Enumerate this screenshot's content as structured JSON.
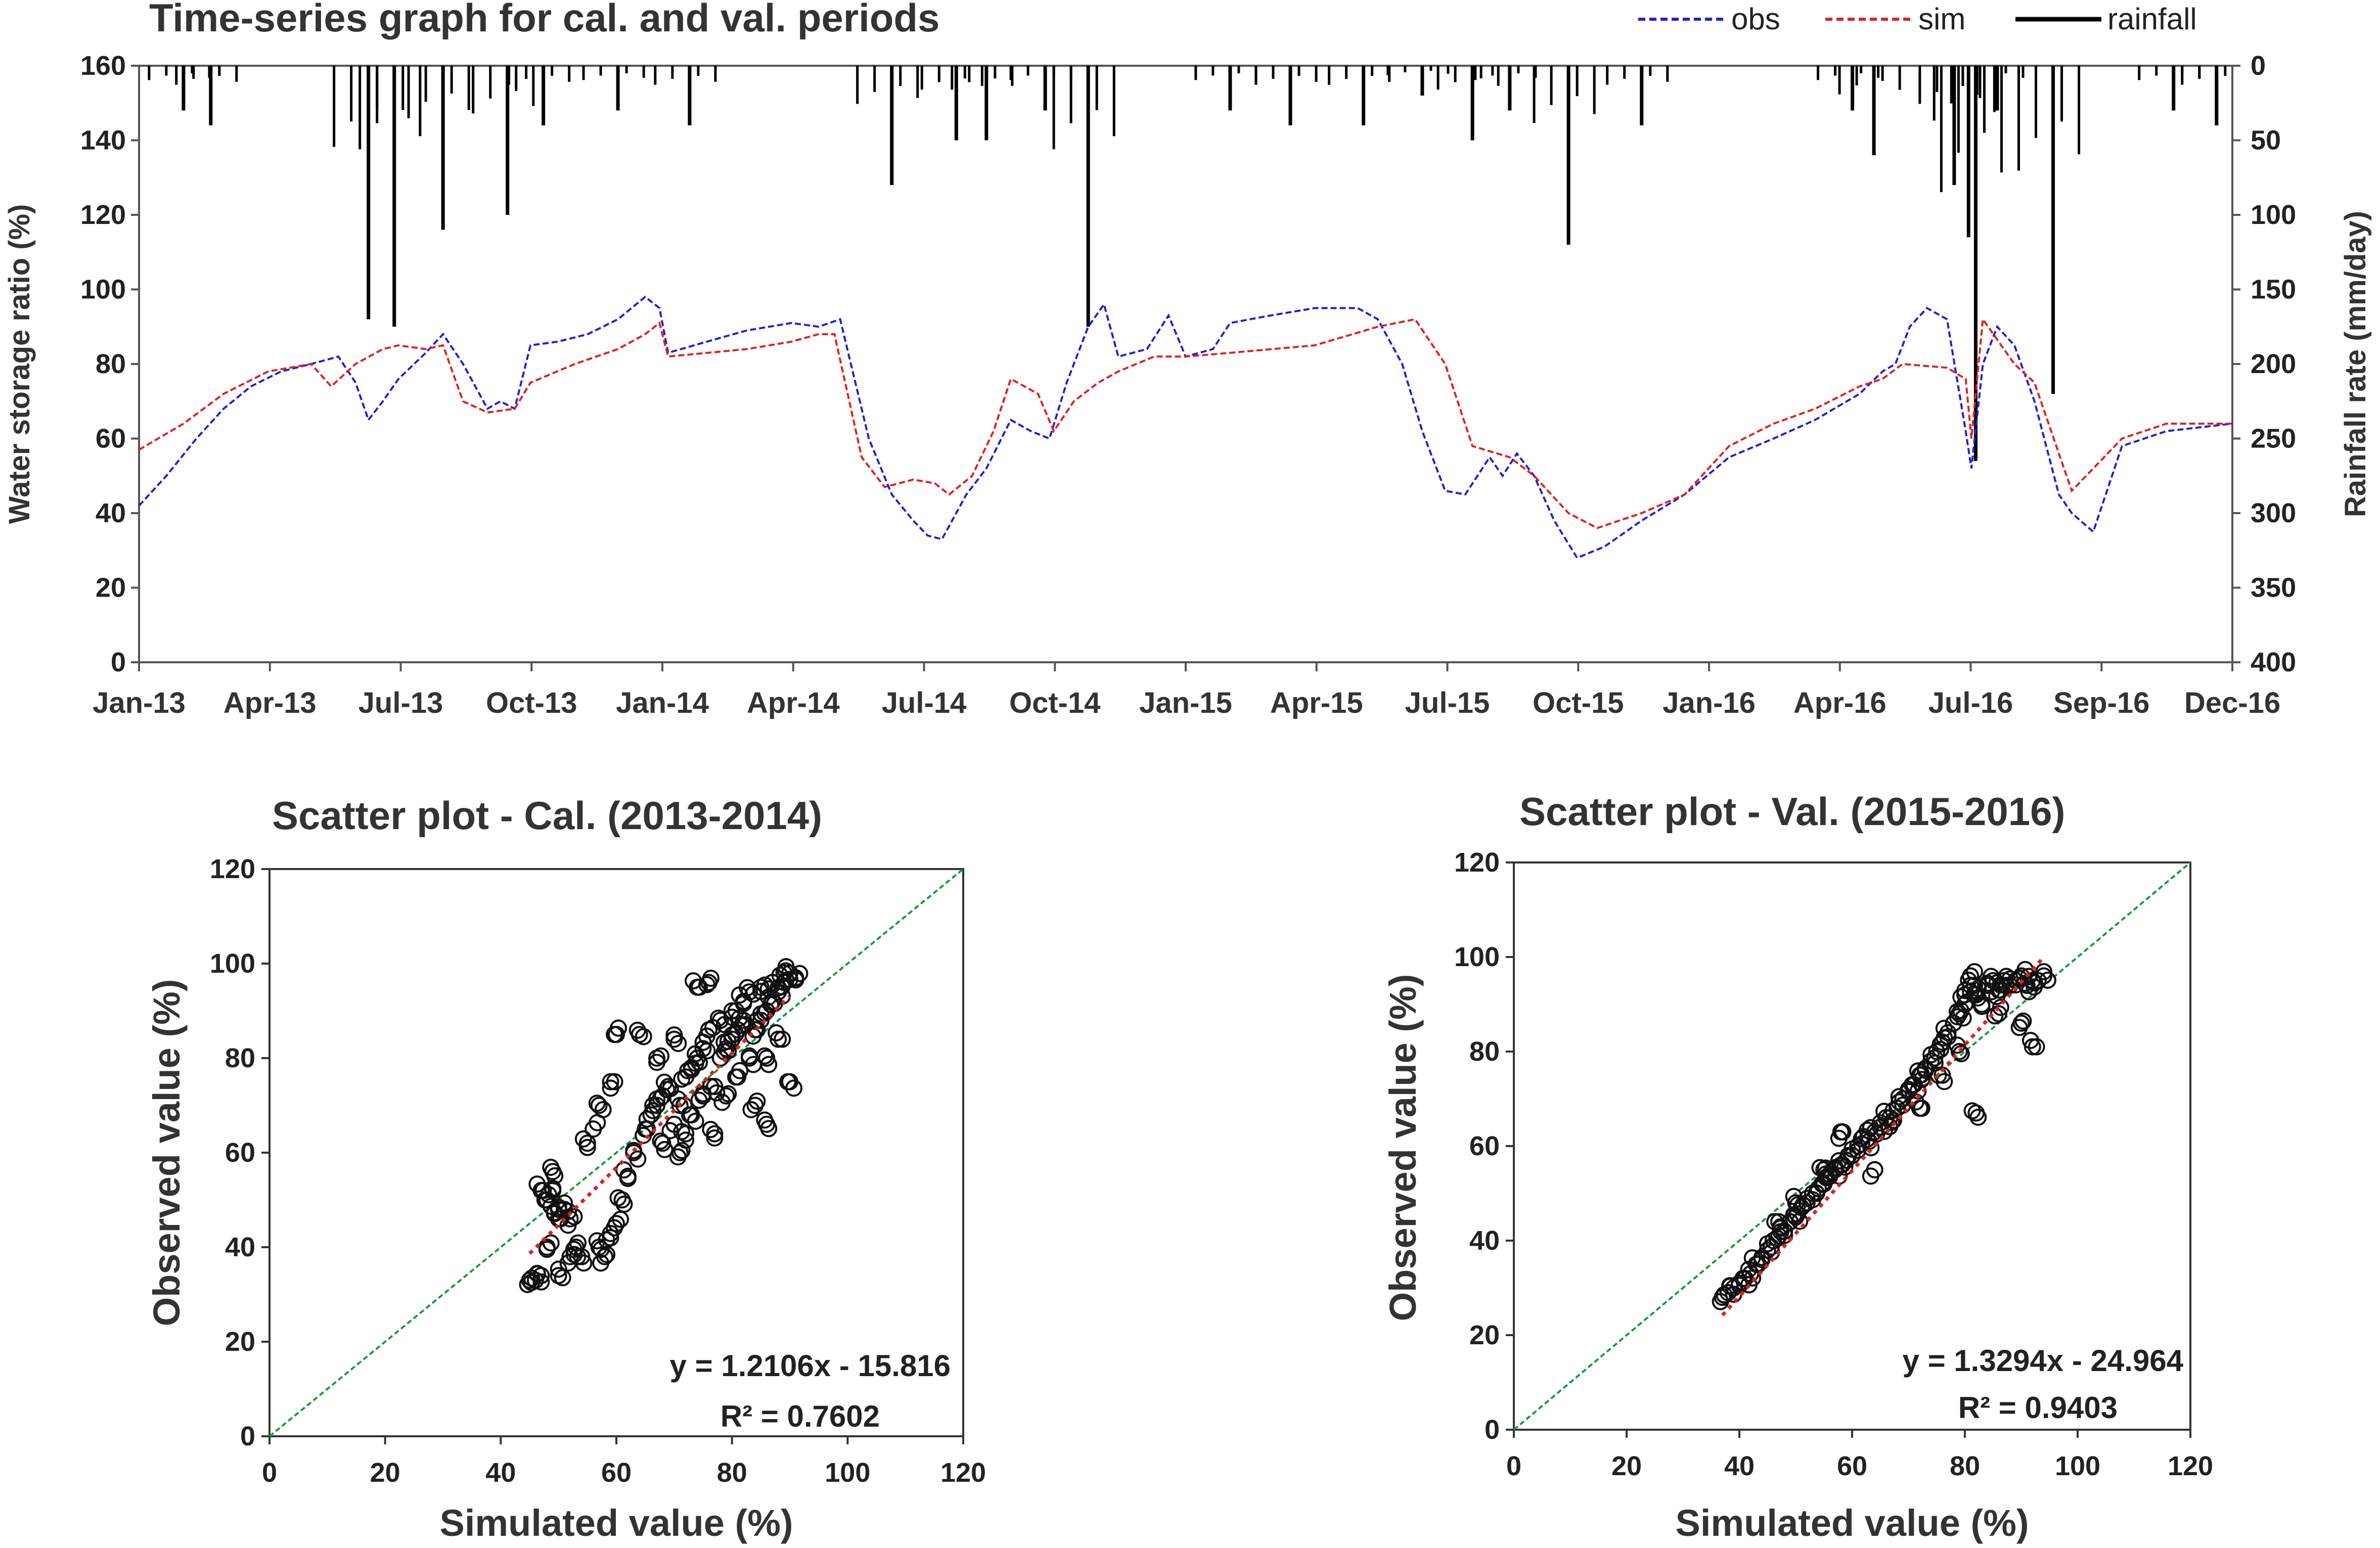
{
  "chart_data": [
    {
      "type": "line",
      "title": "Time-series graph for cal. and val. periods",
      "ylabel": "Water storage ratio (%)",
      "y2label": "Rainfall rate (mm/day)",
      "ylim": [
        0,
        160
      ],
      "y2lim": [
        0,
        400
      ],
      "y2_inverted": true,
      "yticks": [
        "0",
        "20",
        "40",
        "60",
        "80",
        "100",
        "120",
        "140",
        "160"
      ],
      "y2ticks": [
        "0",
        "50",
        "100",
        "150",
        "200",
        "250",
        "300",
        "350",
        "400"
      ],
      "xticks": [
        "Jan-13",
        "Apr-13",
        "Jul-13",
        "Oct-13",
        "Jan-14",
        "Apr-14",
        "Jul-14",
        "Oct-14",
        "Jan-15",
        "Apr-15",
        "Jul-15",
        "Oct-15",
        "Jan-16",
        "Apr-16",
        "Jul-16",
        "Sep-16",
        "Dec-16"
      ],
      "legend_position": "top-right",
      "series": [
        {
          "name": "obs",
          "color": "#1f1fd6",
          "style": "dashed",
          "x": [
            "2013-01-01",
            "2013-01-20",
            "2013-02-10",
            "2013-03-01",
            "2013-03-20",
            "2013-04-10",
            "2013-05-01",
            "2013-05-20",
            "2013-06-01",
            "2013-06-10",
            "2013-06-20",
            "2013-07-01",
            "2013-07-20",
            "2013-08-01",
            "2013-08-15",
            "2013-09-01",
            "2013-09-10",
            "2013-09-20",
            "2013-10-01",
            "2013-10-20",
            "2013-11-10",
            "2013-12-01",
            "2013-12-20",
            "2013-12-30",
            "2014-01-05",
            "2014-02-01",
            "2014-03-01",
            "2014-04-01",
            "2014-04-20",
            "2014-05-05",
            "2014-05-25",
            "2014-06-10",
            "2014-06-25",
            "2014-07-05",
            "2014-07-15",
            "2014-08-01",
            "2014-08-15",
            "2014-09-01",
            "2014-09-15",
            "2014-09-28",
            "2014-10-10",
            "2014-10-25",
            "2014-11-05",
            "2014-11-15",
            "2014-12-05",
            "2014-12-20",
            "2015-01-01",
            "2015-01-20",
            "2015-02-01",
            "2015-03-01",
            "2015-04-01",
            "2015-05-01",
            "2015-05-15",
            "2015-06-01",
            "2015-06-15",
            "2015-07-01",
            "2015-07-15",
            "2015-08-01",
            "2015-08-10",
            "2015-08-20",
            "2015-09-01",
            "2015-09-15",
            "2015-10-01",
            "2015-10-20",
            "2015-11-15",
            "2015-12-15",
            "2016-01-15",
            "2016-02-15",
            "2016-03-15",
            "2016-04-15",
            "2016-05-01",
            "2016-05-10",
            "2016-05-20",
            "2016-06-01",
            "2016-06-15",
            "2016-06-28",
            "2016-07-02",
            "2016-07-10",
            "2016-07-20",
            "2016-08-01",
            "2016-08-15",
            "2016-09-01",
            "2016-09-10",
            "2016-09-25",
            "2016-10-15",
            "2016-11-15",
            "2016-12-31"
          ],
          "y": [
            42,
            50,
            60,
            68,
            74,
            78,
            80,
            82,
            75,
            65,
            70,
            76,
            83,
            88,
            80,
            68,
            70,
            68,
            85,
            86,
            88,
            92,
            98,
            95,
            83,
            86,
            89,
            91,
            90,
            92,
            60,
            45,
            38,
            34,
            33,
            45,
            52,
            65,
            62,
            60,
            75,
            90,
            96,
            82,
            84,
            93,
            82,
            84,
            91,
            93,
            95,
            95,
            92,
            80,
            62,
            46,
            45,
            55,
            50,
            56,
            50,
            38,
            28,
            31,
            38,
            45,
            55,
            60,
            65,
            72,
            78,
            80,
            90,
            95,
            92,
            62,
            52,
            80,
            90,
            85,
            70,
            45,
            40,
            35,
            58,
            62,
            64
          ]
        },
        {
          "name": "sim",
          "color": "#e02020",
          "style": "dashed",
          "x": [
            "2013-01-01",
            "2013-02-01",
            "2013-03-01",
            "2013-04-01",
            "2013-05-01",
            "2013-05-15",
            "2013-06-01",
            "2013-06-20",
            "2013-07-01",
            "2013-07-20",
            "2013-08-01",
            "2013-08-15",
            "2013-09-01",
            "2013-09-20",
            "2013-10-01",
            "2013-11-01",
            "2013-12-01",
            "2013-12-20",
            "2013-12-30",
            "2014-01-05",
            "2014-03-01",
            "2014-04-01",
            "2014-04-20",
            "2014-05-01",
            "2014-05-20",
            "2014-06-05",
            "2014-06-25",
            "2014-07-10",
            "2014-07-20",
            "2014-08-05",
            "2014-08-20",
            "2014-09-01",
            "2014-09-20",
            "2014-10-01",
            "2014-10-15",
            "2014-11-01",
            "2014-11-15",
            "2014-12-10",
            "2015-01-01",
            "2015-02-01",
            "2015-04-01",
            "2015-05-15",
            "2015-06-10",
            "2015-07-01",
            "2015-07-20",
            "2015-08-15",
            "2015-09-01",
            "2015-09-25",
            "2015-10-15",
            "2015-11-15",
            "2015-12-15",
            "2016-01-15",
            "2016-02-15",
            "2016-03-15",
            "2016-04-15",
            "2016-05-01",
            "2016-05-15",
            "2016-06-15",
            "2016-06-28",
            "2016-07-02",
            "2016-07-10",
            "2016-08-01",
            "2016-08-15",
            "2016-09-01",
            "2016-09-10",
            "2016-10-15",
            "2016-11-15",
            "2016-12-31"
          ],
          "y": [
            57,
            64,
            72,
            78,
            80,
            74,
            80,
            84,
            85,
            84,
            85,
            70,
            67,
            68,
            75,
            80,
            84,
            88,
            91,
            82,
            84,
            86,
            88,
            88,
            55,
            47,
            49,
            48,
            45,
            50,
            62,
            76,
            72,
            62,
            70,
            75,
            78,
            82,
            82,
            83,
            85,
            90,
            92,
            80,
            58,
            55,
            50,
            40,
            36,
            40,
            45,
            58,
            64,
            68,
            74,
            76,
            80,
            79,
            76,
            60,
            92,
            80,
            75,
            56,
            46,
            60,
            64,
            64
          ]
        },
        {
          "name": "rainfall",
          "color": "#000000",
          "style": "bars",
          "axis": "y2",
          "x": [
            "2013-02-01",
            "2013-02-20",
            "2013-06-10",
            "2013-06-28",
            "2013-08-01",
            "2013-09-15",
            "2013-10-10",
            "2013-12-01",
            "2014-01-20",
            "2014-06-10",
            "2014-07-25",
            "2014-08-15",
            "2014-09-25",
            "2014-10-25",
            "2015-02-01",
            "2015-03-15",
            "2015-05-05",
            "2015-06-15",
            "2015-07-20",
            "2015-08-15",
            "2015-09-25",
            "2015-11-15",
            "2016-04-10",
            "2016-04-25",
            "2016-06-20",
            "2016-06-30",
            "2016-07-05",
            "2016-07-20",
            "2016-08-28",
            "2016-11-20",
            "2016-12-20"
          ],
          "y": [
            30,
            40,
            170,
            175,
            110,
            100,
            40,
            30,
            40,
            80,
            50,
            50,
            30,
            175,
            30,
            40,
            40,
            20,
            50,
            30,
            120,
            40,
            30,
            60,
            80,
            115,
            265,
            30,
            220,
            30,
            40
          ]
        }
      ]
    },
    {
      "type": "scatter",
      "title": "Scatter plot - Cal. (2013-2014)",
      "xlabel": "Simulated value (%)",
      "ylabel": "Observed value (%)",
      "xlim": [
        0,
        120
      ],
      "ylim": [
        0,
        120
      ],
      "xticks": [
        "0",
        "20",
        "40",
        "60",
        "80",
        "100",
        "120"
      ],
      "yticks": [
        "0",
        "20",
        "40",
        "60",
        "80",
        "100",
        "120"
      ],
      "equation": "y = 1.2106x - 15.816",
      "r2": "R² = 0.7602",
      "r2_value": 0.7602,
      "fit": {
        "slope": 1.2106,
        "intercept": -15.816,
        "x_range": [
          45,
          90
        ]
      },
      "one_to_one_color": "#1a9a3a",
      "fit_color": "#e02020",
      "points": [
        [
          45,
          33
        ],
        [
          46,
          33
        ],
        [
          47,
          34
        ],
        [
          48,
          40
        ],
        [
          48,
          50
        ],
        [
          49,
          56
        ],
        [
          50,
          46
        ],
        [
          50,
          48
        ],
        [
          50,
          34
        ],
        [
          52,
          38
        ],
        [
          53,
          40
        ],
        [
          54,
          38
        ],
        [
          55,
          62
        ],
        [
          56,
          65
        ],
        [
          57,
          70
        ],
        [
          57,
          40
        ],
        [
          58,
          38
        ],
        [
          59,
          42
        ],
        [
          59,
          75
        ],
        [
          60,
          45
        ],
        [
          60,
          85
        ],
        [
          61,
          50
        ],
        [
          62,
          55
        ],
        [
          63,
          60
        ],
        [
          64,
          85
        ],
        [
          65,
          65
        ],
        [
          66,
          68
        ],
        [
          67,
          70
        ],
        [
          67,
          80
        ],
        [
          68,
          72
        ],
        [
          68,
          62
        ],
        [
          69,
          74
        ],
        [
          70,
          66
        ],
        [
          70,
          84
        ],
        [
          71,
          70
        ],
        [
          71,
          60
        ],
        [
          72,
          76
        ],
        [
          72,
          64
        ],
        [
          73,
          78
        ],
        [
          73,
          68
        ],
        [
          74,
          80
        ],
        [
          74,
          95
        ],
        [
          75,
          72
        ],
        [
          75,
          82
        ],
        [
          76,
          86
        ],
        [
          76,
          96
        ],
        [
          77,
          74
        ],
        [
          77,
          64
        ],
        [
          78,
          80
        ],
        [
          78,
          88
        ],
        [
          79,
          82
        ],
        [
          79,
          72
        ],
        [
          80,
          84
        ],
        [
          80,
          90
        ],
        [
          81,
          86
        ],
        [
          81,
          76
        ],
        [
          82,
          88
        ],
        [
          82,
          92
        ],
        [
          83,
          80
        ],
        [
          83,
          94
        ],
        [
          84,
          86
        ],
        [
          84,
          70
        ],
        [
          85,
          88
        ],
        [
          85,
          95
        ],
        [
          86,
          90
        ],
        [
          86,
          80
        ],
        [
          87,
          92
        ],
        [
          87,
          96
        ],
        [
          88,
          94
        ],
        [
          88,
          84
        ],
        [
          89,
          96
        ],
        [
          89,
          98
        ],
        [
          90,
          98
        ],
        [
          91,
          97
        ],
        [
          90,
          75
        ],
        [
          86,
          66
        ],
        [
          47,
          52
        ],
        [
          49,
          52
        ],
        [
          51,
          48
        ],
        [
          52,
          46
        ]
      ]
    },
    {
      "type": "scatter",
      "title": "Scatter plot - Val. (2015-2016)",
      "xlabel": "Simulated value (%)",
      "ylabel": "Observed value (%)",
      "xlim": [
        0,
        120
      ],
      "ylim": [
        0,
        120
      ],
      "xticks": [
        "0",
        "20",
        "40",
        "60",
        "80",
        "100",
        "120"
      ],
      "yticks": [
        "0",
        "20",
        "40",
        "60",
        "80",
        "100",
        "120"
      ],
      "equation": "y = 1.3294x - 24.964",
      "r2": "R² = 0.9403",
      "r2_value": 0.9403,
      "fit": {
        "slope": 1.3294,
        "intercept": -24.964,
        "x_range": [
          37,
          94
        ]
      },
      "one_to_one_color": "#1a9a3a",
      "fit_color": "#e02020",
      "points": [
        [
          37,
          28
        ],
        [
          38,
          29
        ],
        [
          39,
          30
        ],
        [
          40,
          31
        ],
        [
          41,
          32
        ],
        [
          42,
          33
        ],
        [
          43,
          35
        ],
        [
          44,
          36
        ],
        [
          45,
          38
        ],
        [
          46,
          40
        ],
        [
          47,
          41
        ],
        [
          47,
          44
        ],
        [
          48,
          42
        ],
        [
          49,
          44
        ],
        [
          50,
          45
        ],
        [
          50,
          48
        ],
        [
          51,
          47
        ],
        [
          52,
          48
        ],
        [
          53,
          50
        ],
        [
          54,
          51
        ],
        [
          55,
          52
        ],
        [
          55,
          55
        ],
        [
          56,
          54
        ],
        [
          57,
          55
        ],
        [
          58,
          56
        ],
        [
          58,
          63
        ],
        [
          59,
          57
        ],
        [
          60,
          58
        ],
        [
          61,
          60
        ],
        [
          62,
          62
        ],
        [
          63,
          61
        ],
        [
          64,
          63
        ],
        [
          64,
          55
        ],
        [
          65,
          64
        ],
        [
          66,
          66
        ],
        [
          67,
          65
        ],
        [
          68,
          68
        ],
        [
          69,
          70
        ],
        [
          70,
          72
        ],
        [
          71,
          73
        ],
        [
          72,
          75
        ],
        [
          72,
          68
        ],
        [
          73,
          76
        ],
        [
          74,
          78
        ],
        [
          75,
          80
        ],
        [
          76,
          82
        ],
        [
          76,
          75
        ],
        [
          77,
          84
        ],
        [
          78,
          86
        ],
        [
          79,
          88
        ],
        [
          79,
          80
        ],
        [
          80,
          90
        ],
        [
          80,
          92
        ],
        [
          81,
          94
        ],
        [
          81,
          96
        ],
        [
          82,
          92
        ],
        [
          82,
          67
        ],
        [
          83,
          90
        ],
        [
          84,
          94
        ],
        [
          85,
          95
        ],
        [
          86,
          93
        ],
        [
          87,
          95
        ],
        [
          88,
          94
        ],
        [
          89,
          95
        ],
        [
          90,
          96
        ],
        [
          91,
          94
        ],
        [
          92,
          95
        ],
        [
          93,
          95
        ],
        [
          94,
          96
        ],
        [
          92,
          81
        ],
        [
          90,
          86
        ],
        [
          86,
          88
        ]
      ]
    }
  ]
}
